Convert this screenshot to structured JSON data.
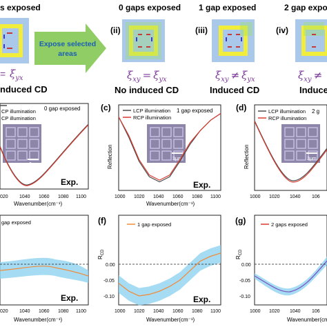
{
  "top_row": {
    "panels": [
      {
        "id": "i-partial",
        "label": "",
        "heading": "s exposed",
        "relation_lhs": "=",
        "relation_sym": "ξ",
        "relation_sub": "yx",
        "caption": "nduced CD"
      },
      {
        "id": "ii",
        "label": "(ii)",
        "heading": "0 gaps exposed",
        "relation_lhs": "ξ",
        "relation_lhs_sub": "xy",
        "relation_op": "=",
        "relation_rhs": "ξ",
        "relation_rhs_sub": "yx",
        "caption": "No induced CD"
      },
      {
        "id": "iii",
        "label": "(iii)",
        "heading": "1 gap exposed",
        "relation_lhs": "ξ",
        "relation_lhs_sub": "xy",
        "relation_op": "≠",
        "relation_rhs": "ξ",
        "relation_rhs_sub": "yx",
        "caption": "Induced CD"
      },
      {
        "id": "iv",
        "label": "(iv)",
        "heading": "2 gap expo",
        "relation_lhs": "ξ",
        "relation_lhs_sub": "xy",
        "relation_op": "≠",
        "caption": "Induce"
      }
    ],
    "arrow_text_line1": "Expose selected",
    "arrow_text_line2": "areas"
  },
  "middle_row": {
    "panels": [
      {
        "id": "b",
        "label": "",
        "legend": [
          "CP illumination",
          "CP illumination"
        ],
        "annotation": "0 gap exposed",
        "exp": "Exp.",
        "xticks": [
          "020",
          "1040",
          "1060",
          "1080",
          "1100"
        ],
        "xlabel": "Wavenumber(cm⁻¹)",
        "scale": "3μm"
      },
      {
        "id": "c",
        "label": "(c)",
        "legend": [
          "LCP illumination",
          "RCP illumination"
        ],
        "annotation": "1 gap exposed",
        "exp": "Exp.",
        "xticks": [
          "1000",
          "1020",
          "1040",
          "1060",
          "1080",
          "1100"
        ],
        "xlabel": "Wavenumber(cm⁻¹)",
        "ylabel": "Reflection",
        "scale": "3μm"
      },
      {
        "id": "d",
        "label": "(d)",
        "legend": [
          "LCP illumination",
          "RCP illumination"
        ],
        "annotation": "2 g",
        "xticks": [
          "1000",
          "1020",
          "1040",
          "106"
        ],
        "ylabel": "Reflection",
        "scale": "3μm"
      }
    ]
  },
  "bottom_row": {
    "panels": [
      {
        "id": "e",
        "label": "",
        "legend": "gap exposed",
        "exp": "Exp.",
        "xticks": [
          "020",
          "1040",
          "1060",
          "1080",
          "1100"
        ],
        "xlabel": "Wavenumber(cm⁻¹)"
      },
      {
        "id": "f",
        "label": "(f)",
        "legend": "1 gap exposed",
        "exp": "Exp.",
        "yticks": [
          "0.00",
          "-0.05",
          "-0.10"
        ],
        "xticks": [
          "1000",
          "1020",
          "1040",
          "1060",
          "1080",
          "1100"
        ],
        "xlabel": "Wavenumber(cm⁻¹)",
        "ylabel": "R",
        "ylabel_sub": "CD"
      },
      {
        "id": "g",
        "label": "(g)",
        "legend": "2 gaps exposed",
        "yticks": [
          "0.00",
          "-0.05",
          "-0.10"
        ],
        "xticks": [
          "1000",
          "1020",
          "1040",
          "106"
        ],
        "xlabel": "Wavenumber(cm",
        "ylabel": "R",
        "ylabel_sub": "CD"
      }
    ]
  },
  "colors": {
    "tile_bg": "#a9c8ea",
    "yellow": "#f2ec3a",
    "arrow_green": "#7cc44a",
    "arrow_text": "#1a5fb4",
    "relation_purple": "#7b3a97",
    "lcp_line": "#4a4a4a",
    "rcp_line": "#d93b30",
    "rcd_line": "#f08c3c",
    "band": "#8fd3f0"
  },
  "chart_data": [
    {
      "panel": "c",
      "type": "line",
      "x": [
        1000,
        1010,
        1020,
        1030,
        1040,
        1050,
        1060,
        1070,
        1080,
        1090,
        1100
      ],
      "series": [
        {
          "name": "LCP illumination",
          "values": [
            0.78,
            0.66,
            0.52,
            0.43,
            0.4,
            0.43,
            0.52,
            0.62,
            0.7,
            0.76,
            0.8
          ]
        },
        {
          "name": "RCP illumination",
          "values": [
            0.78,
            0.67,
            0.53,
            0.44,
            0.41,
            0.44,
            0.53,
            0.63,
            0.7,
            0.76,
            0.8
          ]
        }
      ]
    },
    {
      "panel": "f",
      "type": "line",
      "x": [
        1000,
        1010,
        1020,
        1030,
        1040,
        1050,
        1060,
        1070,
        1080,
        1090,
        1100
      ],
      "series": [
        {
          "name": "1 gap exposed",
          "values": [
            -0.06,
            -0.085,
            -0.1,
            -0.095,
            -0.085,
            -0.07,
            -0.05,
            -0.02,
            0.01,
            0.025,
            0.035
          ]
        }
      ],
      "yticks": [
        0.0,
        -0.05,
        -0.1
      ]
    }
  ]
}
